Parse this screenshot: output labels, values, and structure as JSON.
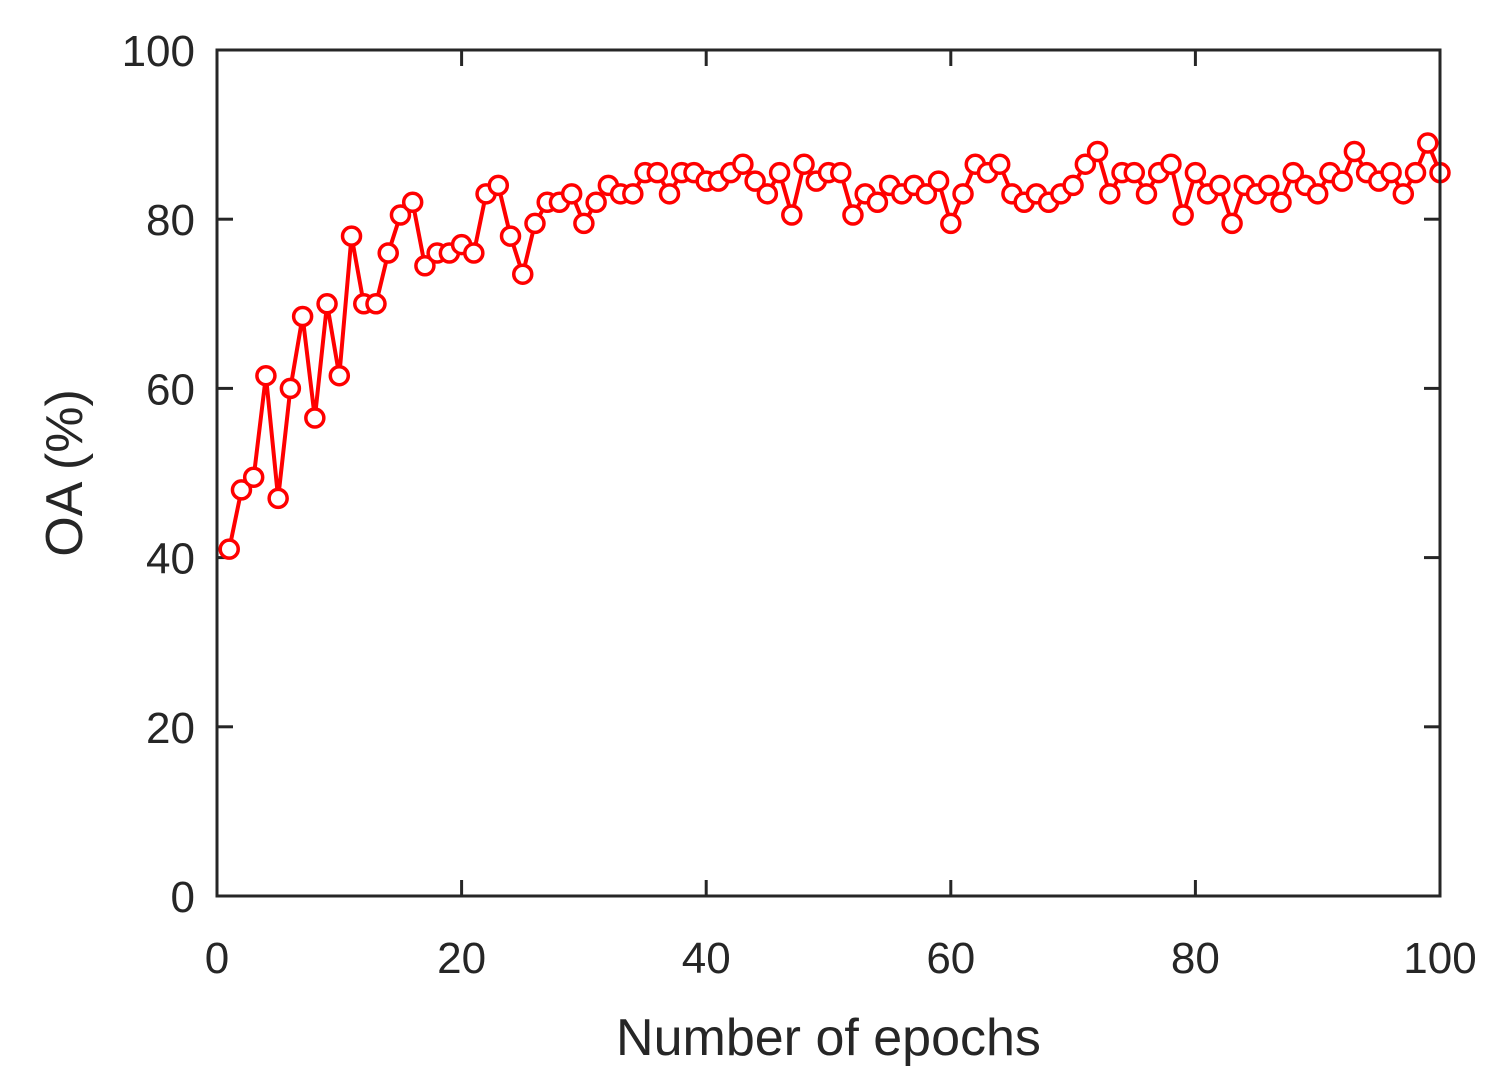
{
  "chart_data": {
    "type": "line",
    "title": "",
    "xlabel": "Number of epochs",
    "ylabel": "OA (%)",
    "xlim": [
      0,
      100
    ],
    "ylim": [
      0,
      100
    ],
    "xticks": [
      0,
      20,
      40,
      60,
      80,
      100
    ],
    "yticks": [
      0,
      20,
      40,
      60,
      80,
      100
    ],
    "grid": false,
    "box": true,
    "marker": "open circle",
    "colors": {
      "series": "#ff0000",
      "axes": "#262626",
      "background": "#ffffff"
    },
    "series": [
      {
        "x": [
          1,
          2,
          3,
          4,
          5,
          6,
          7,
          8,
          9,
          10,
          11,
          12,
          13,
          14,
          15,
          16,
          17,
          18,
          19,
          20,
          21,
          22,
          23,
          24,
          25,
          26,
          27,
          28,
          29,
          30,
          31,
          32,
          33,
          34,
          35,
          36,
          37,
          38,
          39,
          40,
          41,
          42,
          43,
          44,
          45,
          46,
          47,
          48,
          49,
          50,
          51,
          52,
          53,
          54,
          55,
          56,
          57,
          58,
          59,
          60,
          61,
          62,
          63,
          64,
          65,
          66,
          67,
          68,
          69,
          70,
          71,
          72,
          73,
          74,
          75,
          76,
          77,
          78,
          79,
          80,
          81,
          82,
          83,
          84,
          85,
          86,
          87,
          88,
          89,
          90,
          91,
          92,
          93,
          94,
          95,
          96,
          97,
          98,
          99,
          100
        ],
        "values": [
          41,
          48,
          49.5,
          61.5,
          47,
          60,
          68.5,
          56.5,
          70,
          61.5,
          78,
          70,
          70,
          76,
          80.5,
          82,
          74.5,
          76,
          76,
          77,
          76,
          83,
          84,
          78,
          73.5,
          79.5,
          82,
          82,
          83,
          79.5,
          82,
          84,
          83,
          83,
          85.5,
          85.5,
          83,
          85.5,
          85.5,
          84.5,
          84.5,
          85.5,
          86.5,
          84.5,
          83,
          85.5,
          80.5,
          86.5,
          84.5,
          85.5,
          85.5,
          80.5,
          83,
          82,
          84,
          83,
          84,
          83,
          84.5,
          79.5,
          83,
          86.5,
          85.5,
          86.5,
          83,
          82,
          83,
          82,
          83,
          84,
          86.5,
          88,
          83,
          85.5,
          85.5,
          83,
          85.5,
          86.5,
          80.5,
          85.5,
          83,
          84,
          79.5,
          84,
          83,
          84,
          82,
          85.5,
          84,
          83,
          85.5,
          84.5,
          88,
          85.5,
          84.5,
          85.5,
          83,
          85.5,
          89,
          85.5
        ]
      }
    ]
  }
}
